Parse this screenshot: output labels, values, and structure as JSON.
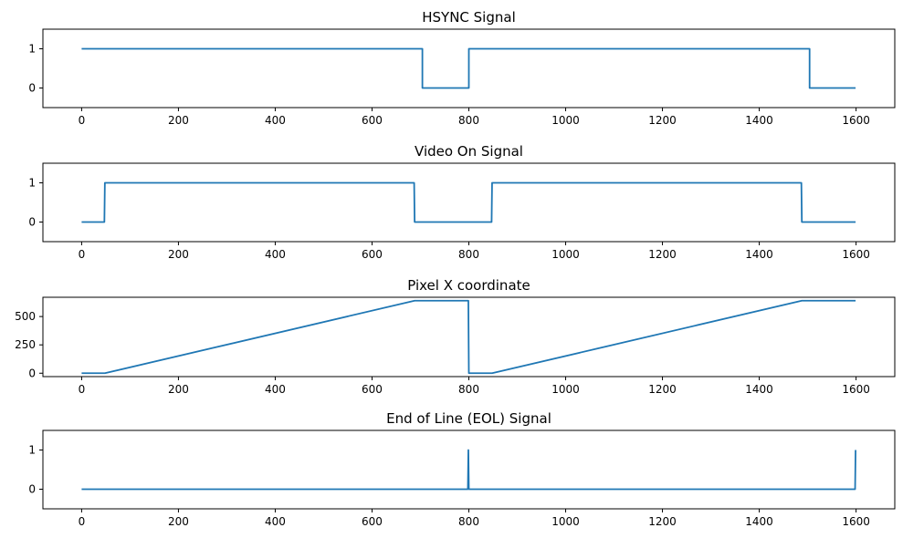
{
  "chart_data": [
    {
      "type": "line",
      "title": "HSYNC Signal",
      "xlim": [
        -80,
        1680
      ],
      "ylim": [
        -0.5,
        1.5
      ],
      "xticks": [
        0,
        200,
        400,
        600,
        800,
        1000,
        1200,
        1400,
        1600
      ],
      "yticks": [
        0,
        1
      ],
      "grid": false,
      "series": [
        {
          "x": [
            0,
            704,
            704,
            800,
            800,
            1504,
            1504,
            1599
          ],
          "y": [
            1,
            1,
            0,
            0,
            1,
            1,
            0,
            0
          ]
        }
      ]
    },
    {
      "type": "line",
      "title": "Video On Signal",
      "xlim": [
        -80,
        1680
      ],
      "ylim": [
        -0.5,
        1.5
      ],
      "xticks": [
        0,
        200,
        400,
        600,
        800,
        1000,
        1200,
        1400,
        1600
      ],
      "yticks": [
        0,
        1
      ],
      "grid": false,
      "series": [
        {
          "x": [
            0,
            47,
            48,
            687,
            688,
            847,
            848,
            1487,
            1488,
            1599
          ],
          "y": [
            0,
            0,
            1,
            1,
            0,
            0,
            1,
            1,
            0,
            0
          ]
        }
      ]
    },
    {
      "type": "line",
      "title": "Pixel X coordinate",
      "xlim": [
        -80,
        1680
      ],
      "ylim": [
        -30,
        670
      ],
      "xticks": [
        0,
        200,
        400,
        600,
        800,
        1000,
        1200,
        1400,
        1600
      ],
      "yticks": [
        0,
        250,
        500
      ],
      "grid": false,
      "series": [
        {
          "x": [
            0,
            48,
            688,
            799,
            800,
            848,
            1488,
            1599
          ],
          "y": [
            0,
            0,
            640,
            640,
            0,
            0,
            640,
            640
          ]
        }
      ]
    },
    {
      "type": "line",
      "title": "End of Line (EOL) Signal",
      "xlim": [
        -80,
        1680
      ],
      "ylim": [
        -0.5,
        1.5
      ],
      "xticks": [
        0,
        200,
        400,
        600,
        800,
        1000,
        1200,
        1400,
        1600
      ],
      "yticks": [
        0,
        1
      ],
      "grid": false,
      "series": [
        {
          "x": [
            0,
            798,
            799,
            800,
            1598,
            1599
          ],
          "y": [
            0,
            0,
            1,
            0,
            0,
            1
          ]
        }
      ]
    }
  ]
}
